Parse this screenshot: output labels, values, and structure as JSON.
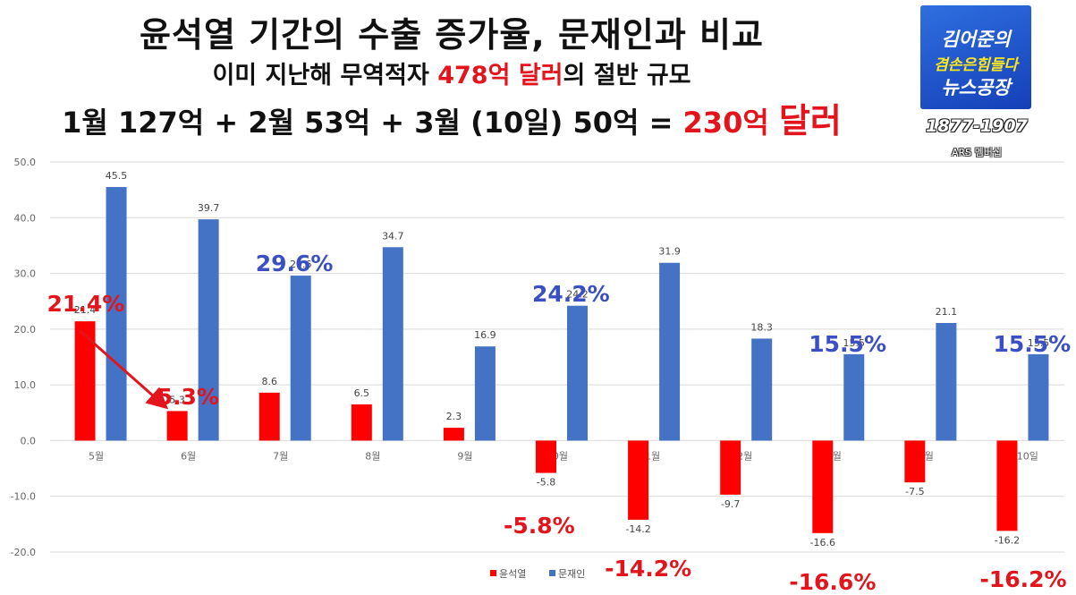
{
  "header": {
    "title": "윤석열 기간의 수출 증가율, 문재인과 비교",
    "subtitle_pre": "이미 지난해 무역적자 ",
    "subtitle_red": "478억 달러",
    "subtitle_post": "의 절반 규모",
    "sum_pre": "1월 127억 + 2월 53억 + 3월 (10일) 50억 = ",
    "sum_red": "230억",
    "sum_red_big": "달러"
  },
  "logo": {
    "line1": "김어준의",
    "line2": "겸손은힘들다",
    "line3": "뉴스공장",
    "years": "1877-1907",
    "sub": "ARS 멤버십"
  },
  "colors": {
    "series1": "#ff0000",
    "series2": "#4472c4",
    "callout_red": "#e3141b",
    "callout_blue": "#3a4fc4"
  },
  "chart_data": {
    "type": "bar",
    "categories": [
      "5월",
      "6월",
      "7월",
      "8월",
      "9월",
      "10월",
      "11월",
      "12월",
      "1월",
      "2월",
      "3월 10일"
    ],
    "series": [
      {
        "name": "윤석열",
        "values": [
          21.4,
          5.3,
          8.6,
          6.5,
          2.3,
          -5.8,
          -14.2,
          -9.7,
          -16.6,
          -7.5,
          -16.2
        ]
      },
      {
        "name": "문재인",
        "values": [
          45.5,
          39.7,
          29.6,
          34.7,
          16.9,
          24.2,
          31.9,
          18.3,
          15.5,
          21.1,
          15.5
        ]
      }
    ],
    "ylim": [
      -20,
      50
    ],
    "yticks": [
      "50.0",
      "40.0",
      "30.0",
      "20.0",
      "10.0",
      "0.0",
      "-10.0",
      "-20.0"
    ],
    "grid": true,
    "legend": "bottom-center"
  },
  "callouts": [
    {
      "text": "21.4%",
      "color": "red"
    },
    {
      "text": "5.3%",
      "color": "red"
    },
    {
      "text": "29.6%",
      "color": "blue"
    },
    {
      "text": "24.2%",
      "color": "blue"
    },
    {
      "text": "15.5%",
      "color": "blue"
    },
    {
      "text": "15.5%",
      "color": "blue"
    },
    {
      "text": "-5.8%",
      "color": "red"
    },
    {
      "text": "-14.2%",
      "color": "red"
    },
    {
      "text": "-16.6%",
      "color": "red"
    },
    {
      "text": "-16.2%",
      "color": "red"
    }
  ]
}
